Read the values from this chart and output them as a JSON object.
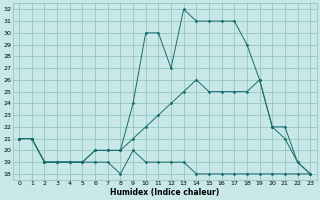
{
  "title": "",
  "xlabel": "Humidex (Indice chaleur)",
  "bg_color": "#c8e8e8",
  "grid_color": "#8abfbf",
  "line_color": "#1a6b6b",
  "xlim": [
    -0.5,
    23.5
  ],
  "ylim": [
    17.5,
    32.5
  ],
  "xticks": [
    0,
    1,
    2,
    3,
    4,
    5,
    6,
    7,
    8,
    9,
    10,
    11,
    12,
    13,
    14,
    15,
    16,
    17,
    18,
    19,
    20,
    21,
    22,
    23
  ],
  "yticks": [
    18,
    19,
    20,
    21,
    22,
    23,
    24,
    25,
    26,
    27,
    28,
    29,
    30,
    31,
    32
  ],
  "line1_x": [
    0,
    1,
    2,
    3,
    4,
    5,
    6,
    7,
    8,
    9,
    10,
    11,
    12,
    13,
    14,
    15,
    16,
    17,
    18,
    19,
    20,
    21,
    22,
    23
  ],
  "line1_y": [
    21,
    21,
    19,
    19,
    19,
    19,
    19,
    19,
    18,
    20,
    19,
    19,
    19,
    19,
    18,
    18,
    18,
    18,
    18,
    18,
    18,
    18,
    18,
    18
  ],
  "line2_x": [
    0,
    1,
    2,
    3,
    4,
    5,
    6,
    7,
    8,
    9,
    10,
    11,
    12,
    13,
    14,
    15,
    16,
    17,
    18,
    19,
    20,
    21,
    22,
    23
  ],
  "line2_y": [
    21,
    21,
    19,
    19,
    19,
    19,
    20,
    20,
    20,
    21,
    22,
    23,
    24,
    25,
    26,
    25,
    25,
    25,
    25,
    26,
    22,
    21,
    19,
    18
  ],
  "line3_x": [
    0,
    1,
    2,
    3,
    4,
    5,
    6,
    7,
    8,
    9,
    10,
    11,
    12,
    13,
    14,
    15,
    16,
    17,
    18,
    19,
    20,
    21,
    22,
    23
  ],
  "line3_y": [
    21,
    21,
    19,
    19,
    19,
    19,
    20,
    20,
    20,
    24,
    30,
    30,
    27,
    32,
    31,
    31,
    31,
    31,
    29,
    26,
    22,
    22,
    19,
    18
  ]
}
